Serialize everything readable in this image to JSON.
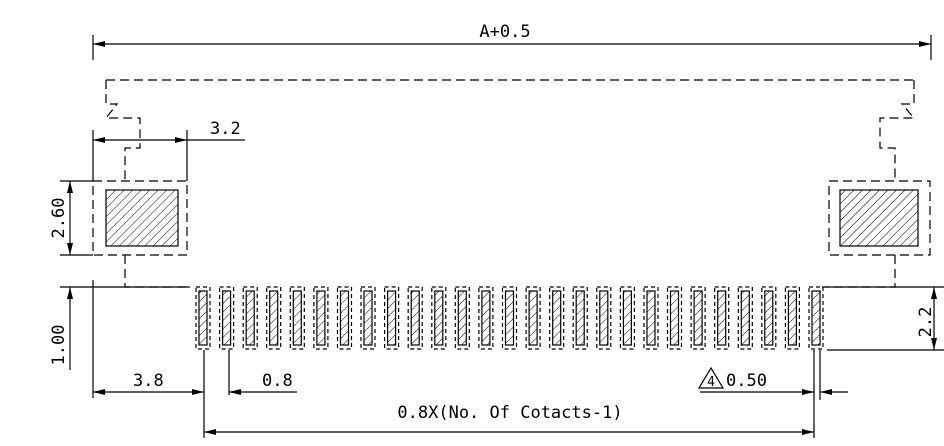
{
  "dimensions": {
    "overall_width": "A+0.5",
    "pad_offset": "3.2",
    "pad_height": "2.60",
    "contact_height": "1.00",
    "right_height": "2.2",
    "left_margin": "3.8",
    "pitch": "0.8",
    "contact_width": "0.50",
    "contact_width_note": "4",
    "contact_span": "0.8X(No. Of Cotacts-1)"
  },
  "contacts": {
    "count": 27
  }
}
